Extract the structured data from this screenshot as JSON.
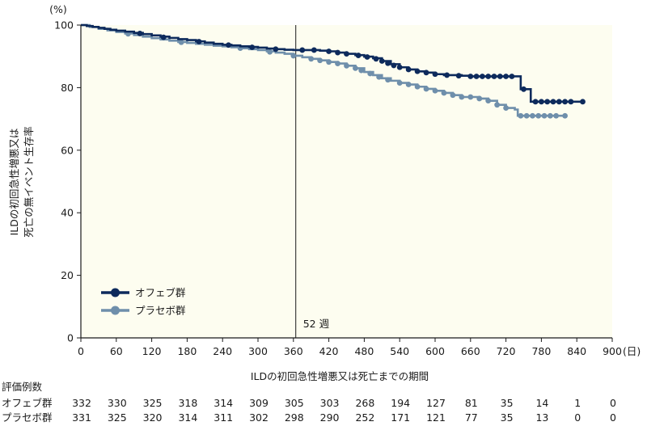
{
  "chart_data": {
    "type": "line",
    "subtype": "kaplan-meier",
    "ylabel_line1": "ILDの初回急性増悪又は",
    "ylabel_line2": "死亡の無イベント生存率",
    "y_unit": "(%)",
    "xlabel": "ILDの初回急性増悪又は死亡までの期間",
    "x_unit": "(日)",
    "xlim": [
      0,
      900
    ],
    "ylim": [
      0,
      100
    ],
    "x_ticks": [
      0,
      60,
      120,
      180,
      240,
      300,
      360,
      420,
      480,
      540,
      600,
      660,
      720,
      780,
      840,
      900
    ],
    "y_ticks": [
      0,
      20,
      40,
      60,
      80,
      100
    ],
    "x_tick_labels": [
      "0",
      "60",
      "120",
      "180",
      "240",
      "300",
      "360",
      "420",
      "480",
      "540",
      "600",
      "660",
      "720",
      "780",
      "840",
      "900"
    ],
    "y_tick_labels": [
      "0",
      "20",
      "40",
      "60",
      "80",
      "100"
    ],
    "reference_line": {
      "x": 364,
      "label": "52 週"
    },
    "legend_position": "bottom-left",
    "series": [
      {
        "name": "オフェブ群",
        "color": "#0d2a5c",
        "points": [
          [
            0,
            100
          ],
          [
            10,
            99.7
          ],
          [
            20,
            99.4
          ],
          [
            30,
            99.1
          ],
          [
            40,
            98.8
          ],
          [
            50,
            98.5
          ],
          [
            60,
            98.2
          ],
          [
            75,
            97.9
          ],
          [
            90,
            97.5
          ],
          [
            105,
            97.1
          ],
          [
            120,
            96.7
          ],
          [
            135,
            96.3
          ],
          [
            150,
            95.9
          ],
          [
            165,
            95.5
          ],
          [
            180,
            95.2
          ],
          [
            195,
            94.8
          ],
          [
            210,
            94.4
          ],
          [
            225,
            94.0
          ],
          [
            240,
            93.7
          ],
          [
            255,
            93.5
          ],
          [
            270,
            93.2
          ],
          [
            285,
            93.0
          ],
          [
            300,
            92.8
          ],
          [
            315,
            92.5
          ],
          [
            330,
            92.3
          ],
          [
            345,
            92.1
          ],
          [
            360,
            92.0
          ],
          [
            375,
            92.0
          ],
          [
            390,
            92.0
          ],
          [
            405,
            91.8
          ],
          [
            420,
            91.6
          ],
          [
            435,
            91.2
          ],
          [
            450,
            90.8
          ],
          [
            465,
            90.4
          ],
          [
            480,
            89.9
          ],
          [
            495,
            89.4
          ],
          [
            510,
            88.5
          ],
          [
            525,
            87.5
          ],
          [
            540,
            86.5
          ],
          [
            555,
            85.8
          ],
          [
            570,
            85.2
          ],
          [
            585,
            84.8
          ],
          [
            600,
            84.3
          ],
          [
            615,
            84.0
          ],
          [
            630,
            84.0
          ],
          [
            645,
            83.8
          ],
          [
            660,
            83.6
          ],
          [
            700,
            83.6
          ],
          [
            740,
            83.6
          ],
          [
            745,
            79.5
          ],
          [
            760,
            79.5
          ],
          [
            762,
            75.5
          ],
          [
            840,
            75.5
          ],
          [
            850,
            75.5
          ]
        ],
        "markers": [
          [
            100,
            97.3
          ],
          [
            140,
            96.1
          ],
          [
            200,
            94.7
          ],
          [
            250,
            93.6
          ],
          [
            290,
            92.9
          ],
          [
            330,
            92.3
          ],
          [
            375,
            92.0
          ],
          [
            395,
            92.0
          ],
          [
            420,
            91.6
          ],
          [
            435,
            91.2
          ],
          [
            450,
            90.8
          ],
          [
            470,
            90.3
          ],
          [
            485,
            89.8
          ],
          [
            500,
            89.2
          ],
          [
            510,
            88.5
          ],
          [
            520,
            87.8
          ],
          [
            530,
            87.1
          ],
          [
            540,
            86.5
          ],
          [
            555,
            85.8
          ],
          [
            570,
            85.2
          ],
          [
            585,
            84.8
          ],
          [
            600,
            84.3
          ],
          [
            620,
            84.0
          ],
          [
            640,
            83.8
          ],
          [
            660,
            83.6
          ],
          [
            670,
            83.6
          ],
          [
            680,
            83.6
          ],
          [
            690,
            83.6
          ],
          [
            700,
            83.6
          ],
          [
            710,
            83.6
          ],
          [
            720,
            83.6
          ],
          [
            730,
            83.6
          ],
          [
            750,
            79.5
          ],
          [
            770,
            75.5
          ],
          [
            780,
            75.5
          ],
          [
            790,
            75.5
          ],
          [
            800,
            75.5
          ],
          [
            810,
            75.5
          ],
          [
            820,
            75.5
          ],
          [
            830,
            75.5
          ],
          [
            850,
            75.5
          ]
        ]
      },
      {
        "name": "プラセボ群",
        "color": "#6f8fab",
        "points": [
          [
            0,
            100
          ],
          [
            15,
            99.4
          ],
          [
            30,
            98.8
          ],
          [
            45,
            98.3
          ],
          [
            60,
            97.8
          ],
          [
            75,
            97.3
          ],
          [
            90,
            96.8
          ],
          [
            105,
            96.3
          ],
          [
            120,
            95.8
          ],
          [
            135,
            95.4
          ],
          [
            150,
            95.0
          ],
          [
            165,
            94.6
          ],
          [
            180,
            94.3
          ],
          [
            195,
            94.0
          ],
          [
            210,
            93.7
          ],
          [
            225,
            93.4
          ],
          [
            240,
            93.2
          ],
          [
            255,
            92.9
          ],
          [
            270,
            92.6
          ],
          [
            285,
            92.3
          ],
          [
            300,
            92.0
          ],
          [
            315,
            91.6
          ],
          [
            330,
            91.2
          ],
          [
            345,
            90.8
          ],
          [
            360,
            90.2
          ],
          [
            375,
            89.7
          ],
          [
            390,
            89.2
          ],
          [
            405,
            88.7
          ],
          [
            420,
            88.2
          ],
          [
            435,
            87.7
          ],
          [
            450,
            87.0
          ],
          [
            465,
            86.2
          ],
          [
            480,
            85.0
          ],
          [
            495,
            84.0
          ],
          [
            510,
            83.0
          ],
          [
            525,
            82.2
          ],
          [
            540,
            81.5
          ],
          [
            555,
            81.0
          ],
          [
            570,
            80.3
          ],
          [
            585,
            79.6
          ],
          [
            600,
            79.0
          ],
          [
            615,
            78.3
          ],
          [
            630,
            77.6
          ],
          [
            645,
            77.0
          ],
          [
            660,
            77.0
          ],
          [
            675,
            76.5
          ],
          [
            690,
            75.8
          ],
          [
            705,
            74.5
          ],
          [
            720,
            73.5
          ],
          [
            735,
            73.0
          ],
          [
            740,
            71.0
          ],
          [
            780,
            71.0
          ],
          [
            820,
            71.0
          ]
        ],
        "markers": [
          [
            80,
            97.2
          ],
          [
            170,
            94.5
          ],
          [
            270,
            92.6
          ],
          [
            320,
            91.4
          ],
          [
            360,
            90.2
          ],
          [
            390,
            89.2
          ],
          [
            405,
            88.7
          ],
          [
            420,
            88.2
          ],
          [
            435,
            87.7
          ],
          [
            450,
            87.0
          ],
          [
            465,
            86.2
          ],
          [
            475,
            85.5
          ],
          [
            490,
            84.5
          ],
          [
            505,
            83.4
          ],
          [
            520,
            82.5
          ],
          [
            540,
            81.5
          ],
          [
            555,
            81.0
          ],
          [
            570,
            80.3
          ],
          [
            585,
            79.6
          ],
          [
            600,
            79.0
          ],
          [
            615,
            78.3
          ],
          [
            630,
            77.6
          ],
          [
            645,
            77.0
          ],
          [
            660,
            77.0
          ],
          [
            675,
            76.5
          ],
          [
            690,
            75.8
          ],
          [
            705,
            74.5
          ],
          [
            720,
            73.5
          ],
          [
            745,
            71.0
          ],
          [
            755,
            71.0
          ],
          [
            765,
            71.0
          ],
          [
            775,
            71.0
          ],
          [
            785,
            71.0
          ],
          [
            795,
            71.0
          ],
          [
            805,
            71.0
          ],
          [
            820,
            71.0
          ]
        ]
      }
    ],
    "risk_table": {
      "title": "評価例数",
      "rows": [
        {
          "name": "オフェブ群",
          "values": [
            "332",
            "330",
            "325",
            "318",
            "314",
            "309",
            "305",
            "303",
            "268",
            "194",
            "127",
            "81",
            "35",
            "14",
            "1",
            "0"
          ]
        },
        {
          "name": "プラセボ群",
          "values": [
            "331",
            "325",
            "320",
            "314",
            "311",
            "302",
            "298",
            "290",
            "252",
            "171",
            "121",
            "77",
            "35",
            "13",
            "0",
            "0"
          ]
        }
      ]
    }
  }
}
